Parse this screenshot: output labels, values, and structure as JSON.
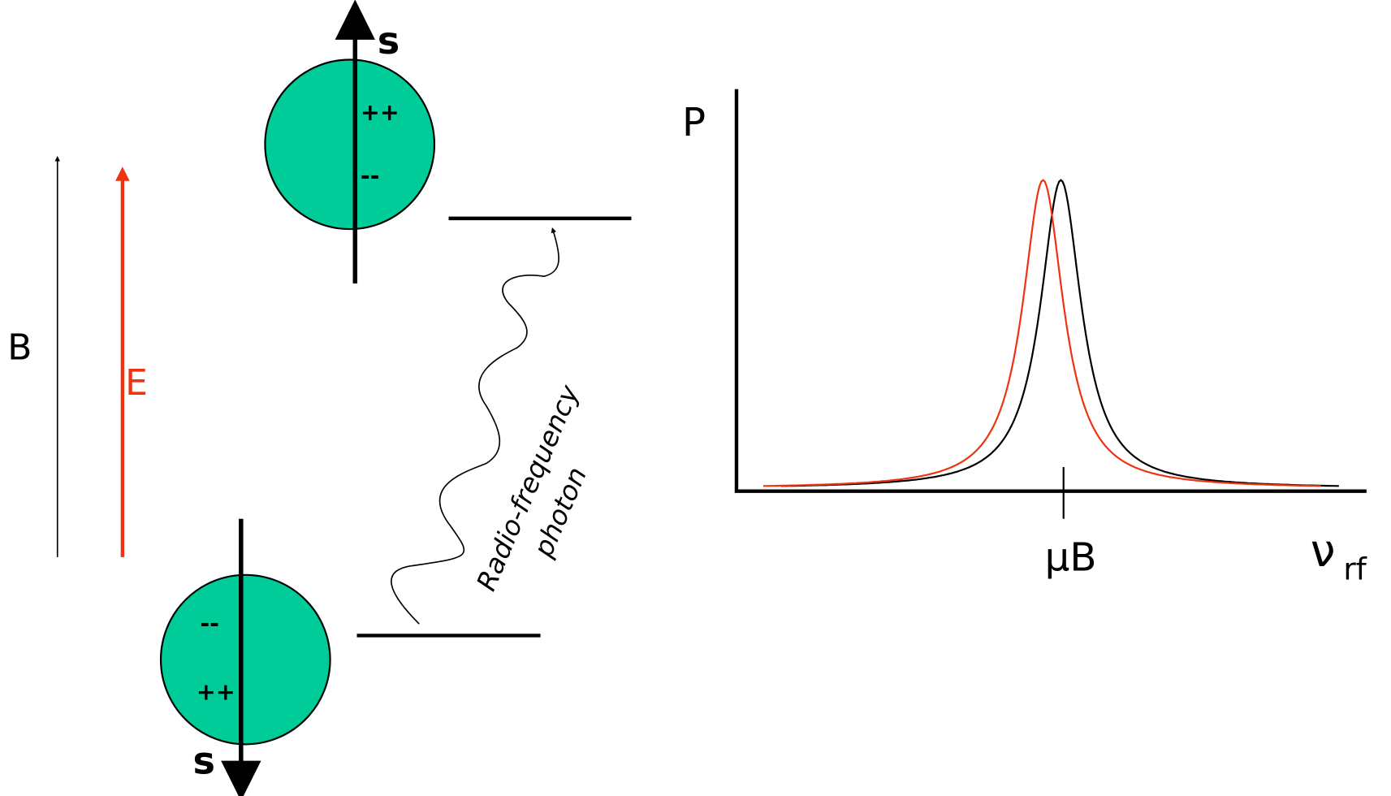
{
  "spin_up": {
    "label": "s",
    "top_charge": "++",
    "bottom_charge": "--"
  },
  "spin_down": {
    "label": "s",
    "top_charge": "--",
    "bottom_charge": "++"
  },
  "fields": {
    "magnetic": "B",
    "electric": "E"
  },
  "photon": {
    "lines": [
      "Radio-frequency",
      "photon"
    ]
  },
  "plot": {
    "y_label": "P",
    "x_tick": "μB",
    "x_label": "ν",
    "x_label_sub": "rf"
  }
}
